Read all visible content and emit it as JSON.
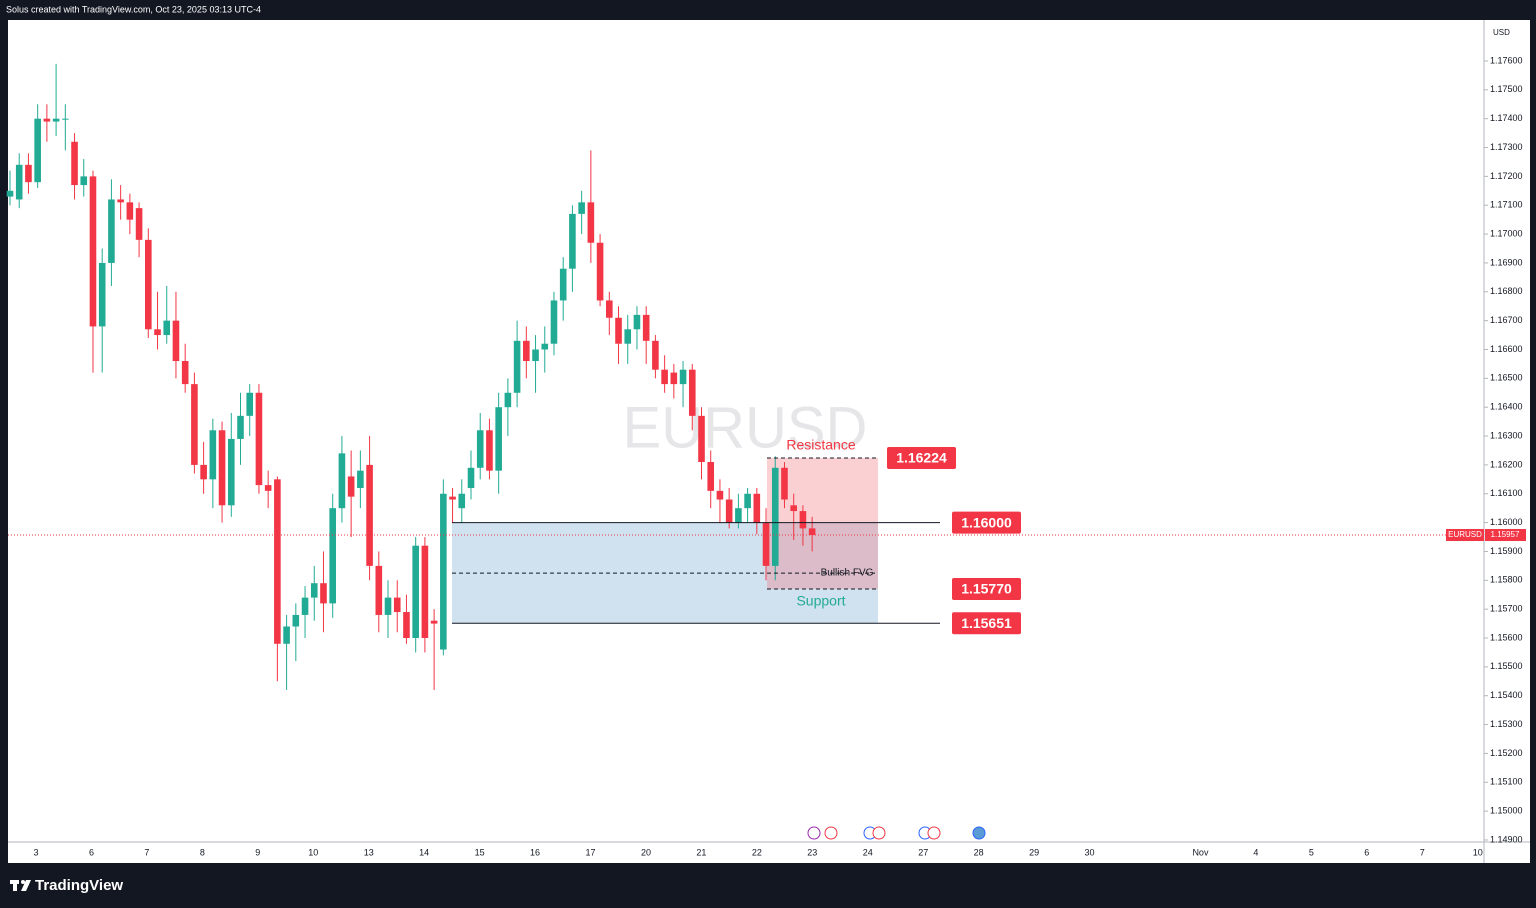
{
  "header": {
    "text": "Solus created with TradingView.com, Oct 23, 2025 03:13 UTC-4"
  },
  "footer": {
    "brand": "TradingView"
  },
  "chart_data": {
    "type": "candlestick",
    "symbol": "EURUSD",
    "currency": "USD",
    "up_color": "#22ab94",
    "down_color": "#f23645",
    "grid": false,
    "ylim": [
      1.14893,
      1.17742
    ],
    "yticks": [
      {
        "value": 1.176,
        "label": "1.17600"
      },
      {
        "value": 1.175,
        "label": "1.17500"
      },
      {
        "value": 1.174,
        "label": "1.17400"
      },
      {
        "value": 1.173,
        "label": "1.17300"
      },
      {
        "value": 1.172,
        "label": "1.17200"
      },
      {
        "value": 1.171,
        "label": "1.17100"
      },
      {
        "value": 1.17,
        "label": "1.17000"
      },
      {
        "value": 1.169,
        "label": "1.16900"
      },
      {
        "value": 1.168,
        "label": "1.16800"
      },
      {
        "value": 1.167,
        "label": "1.16700"
      },
      {
        "value": 1.166,
        "label": "1.16600"
      },
      {
        "value": 1.165,
        "label": "1.16500"
      },
      {
        "value": 1.164,
        "label": "1.16400"
      },
      {
        "value": 1.163,
        "label": "1.16300"
      },
      {
        "value": 1.162,
        "label": "1.16200"
      },
      {
        "value": 1.161,
        "label": "1.16100"
      },
      {
        "value": 1.16,
        "label": "1.16000"
      },
      {
        "value": 1.159,
        "label": "1.15900"
      },
      {
        "value": 1.158,
        "label": "1.15800"
      },
      {
        "value": 1.157,
        "label": "1.15700"
      },
      {
        "value": 1.156,
        "label": "1.15600"
      },
      {
        "value": 1.155,
        "label": "1.15500"
      },
      {
        "value": 1.154,
        "label": "1.15400"
      },
      {
        "value": 1.153,
        "label": "1.15300"
      },
      {
        "value": 1.152,
        "label": "1.15200"
      },
      {
        "value": 1.151,
        "label": "1.15100"
      },
      {
        "value": 1.15,
        "label": "1.15000"
      },
      {
        "value": 1.149,
        "label": "1.14900"
      }
    ],
    "categories": [
      "3",
      "6",
      "7",
      "8",
      "9",
      "10",
      "13",
      "14",
      "15",
      "16",
      "17",
      "20",
      "21",
      "22",
      "23",
      "24",
      "27",
      "28",
      "29",
      "30",
      null,
      "Nov",
      "4",
      "5",
      "6",
      "7",
      "10"
    ],
    "ohlc": {
      "open": [
        1.1713,
        1.1712,
        1.1724,
        1.1718,
        1.174,
        1.1739,
        1.174,
        1.1732,
        1.1717,
        1.172,
        1.1668,
        1.169,
        1.1712,
        1.1711,
        1.1709,
        1.1698,
        1.1667,
        1.1665,
        1.167,
        1.1656,
        1.1648,
        1.162,
        1.1615,
        1.1632,
        1.1606,
        1.1629,
        1.1637,
        1.1645,
        1.1613,
        1.1615,
        1.1558,
        1.1564,
        1.1568,
        1.1574,
        1.1579,
        1.1572,
        1.1605,
        1.1616,
        1.1612,
        1.162,
        1.1585,
        1.1568,
        1.1574,
        1.1569,
        1.156,
        1.1592,
        1.1566,
        1.1556,
        1.1609,
        1.1605,
        1.1612,
        1.1619,
        1.1632,
        1.1618,
        1.164,
        1.1645,
        1.1663,
        1.1656,
        1.166,
        1.1662,
        1.1677,
        1.1688,
        1.1707,
        1.1711,
        1.1697,
        1.1677,
        1.1671,
        1.1662,
        1.1667,
        1.1672,
        1.1663,
        1.1653,
        1.1652,
        1.1648,
        1.1653,
        1.1637,
        1.1621,
        1.1611,
        1.1608,
        1.16,
        1.1605,
        1.161,
        1.16,
        1.1585,
        1.1619,
        1.1606,
        1.1604,
        1.1598
      ],
      "high": [
        1.1722,
        1.1728,
        1.1728,
        1.1745,
        1.1745,
        1.1759,
        1.1745,
        1.1735,
        1.1726,
        1.1722,
        1.1695,
        1.1719,
        1.1717,
        1.1714,
        1.1711,
        1.1702,
        1.168,
        1.1682,
        1.168,
        1.1662,
        1.1652,
        1.1628,
        1.1636,
        1.1635,
        1.1638,
        1.1645,
        1.1648,
        1.1648,
        1.1618,
        1.1616,
        1.1568,
        1.1572,
        1.1578,
        1.1585,
        1.159,
        1.161,
        1.163,
        1.1625,
        1.1625,
        1.163,
        1.159,
        1.158,
        1.158,
        1.1575,
        1.1595,
        1.1595,
        1.157,
        1.1615,
        1.1612,
        1.1615,
        1.1625,
        1.1638,
        1.1636,
        1.1645,
        1.165,
        1.167,
        1.1668,
        1.1665,
        1.1668,
        1.168,
        1.1692,
        1.171,
        1.1715,
        1.1729,
        1.17,
        1.168,
        1.1675,
        1.1672,
        1.1675,
        1.1675,
        1.1665,
        1.1658,
        1.1655,
        1.1656,
        1.1655,
        1.164,
        1.1625,
        1.1615,
        1.1612,
        1.161,
        1.1612,
        1.1612,
        1.1605,
        1.1623,
        1.1621,
        1.161,
        1.1606,
        1.1602
      ],
      "low": [
        1.171,
        1.1709,
        1.1714,
        1.1716,
        1.1732,
        1.1734,
        1.1729,
        1.1712,
        1.1713,
        1.1652,
        1.1652,
        1.1682,
        1.1705,
        1.17,
        1.1692,
        1.1664,
        1.166,
        1.1662,
        1.165,
        1.1645,
        1.1617,
        1.161,
        1.1605,
        1.16,
        1.1602,
        1.162,
        1.163,
        1.161,
        1.1605,
        1.1545,
        1.1542,
        1.1552,
        1.156,
        1.1566,
        1.1562,
        1.1567,
        1.16,
        1.1595,
        1.1605,
        1.158,
        1.1562,
        1.156,
        1.1562,
        1.1558,
        1.1555,
        1.1555,
        1.1542,
        1.1554,
        1.16,
        1.16,
        1.1608,
        1.1615,
        1.1615,
        1.161,
        1.163,
        1.164,
        1.165,
        1.1645,
        1.1652,
        1.1658,
        1.167,
        1.168,
        1.17,
        1.169,
        1.1675,
        1.1665,
        1.1655,
        1.1655,
        1.166,
        1.1655,
        1.165,
        1.1645,
        1.1643,
        1.164,
        1.1632,
        1.1615,
        1.1605,
        1.16,
        1.1598,
        1.1598,
        1.16,
        1.1596,
        1.158,
        1.158,
        1.1605,
        1.1594,
        1.1592,
        1.159
      ],
      "close": [
        1.1715,
        1.1724,
        1.1718,
        1.174,
        1.1739,
        1.174,
        1.174,
        1.1717,
        1.172,
        1.1668,
        1.169,
        1.1712,
        1.1711,
        1.1705,
        1.1698,
        1.1667,
        1.1665,
        1.167,
        1.1656,
        1.1648,
        1.162,
        1.1615,
        1.1632,
        1.1606,
        1.1629,
        1.1637,
        1.1645,
        1.1613,
        1.1611,
        1.1558,
        1.1564,
        1.1568,
        1.1574,
        1.1579,
        1.1572,
        1.1605,
        1.1624,
        1.1609,
        1.1618,
        1.1585,
        1.1568,
        1.1574,
        1.1569,
        1.156,
        1.1592,
        1.156,
        1.1565,
        1.161,
        1.1608,
        1.161,
        1.1619,
        1.1632,
        1.1618,
        1.164,
        1.1645,
        1.1663,
        1.1656,
        1.166,
        1.1662,
        1.1677,
        1.1688,
        1.1707,
        1.1711,
        1.1697,
        1.1677,
        1.1671,
        1.1662,
        1.1667,
        1.1672,
        1.1663,
        1.1653,
        1.1648,
        1.1648,
        1.1653,
        1.1637,
        1.1621,
        1.1611,
        1.1608,
        1.16,
        1.1605,
        1.161,
        1.16,
        1.1585,
        1.1619,
        1.1608,
        1.1604,
        1.1598,
        1.15957
      ]
    },
    "last_price": 1.15957,
    "levels": [
      {
        "value": 1.16224,
        "label": "1.16224"
      },
      {
        "value": 1.16,
        "label": "1.16000"
      },
      {
        "value": 1.1577,
        "label": "1.15770"
      },
      {
        "value": 1.15651,
        "label": "1.15651"
      }
    ],
    "fvg_level": 1.15825,
    "annotations": {
      "resistance": "Resistance",
      "support": "Support",
      "fvg": "Bullish FVG"
    }
  }
}
